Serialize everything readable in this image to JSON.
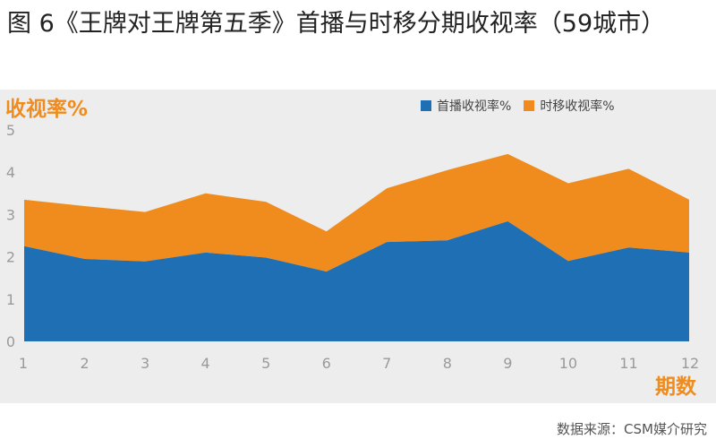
{
  "title": "图 6《王牌对王牌第五季》首播与时移分期收视率（59城市）",
  "source": "数据来源：CSM媒介研究",
  "chart_data": {
    "type": "area",
    "stacked": true,
    "ylabel": "收视率%",
    "xlabel": "期数",
    "ylim": [
      0,
      5
    ],
    "yticks": [
      "0",
      "1",
      "2",
      "3",
      "4",
      "5"
    ],
    "categories": [
      "1",
      "2",
      "3",
      "4",
      "5",
      "6",
      "7",
      "8",
      "9",
      "10",
      "11",
      "12"
    ],
    "legend_position": "top-right",
    "grid": false,
    "series": [
      {
        "name": "首播收视率%",
        "color": "#1f6fb5",
        "values": [
          2.25,
          1.95,
          1.89,
          2.1,
          1.98,
          1.65,
          2.35,
          2.39,
          2.84,
          1.9,
          2.22,
          2.1
        ]
      },
      {
        "name": "时移收视率%",
        "color": "#ef8c1d",
        "values": [
          1.1,
          1.25,
          1.17,
          1.4,
          1.32,
          0.95,
          1.27,
          1.66,
          1.59,
          1.84,
          1.86,
          1.25
        ]
      }
    ]
  }
}
